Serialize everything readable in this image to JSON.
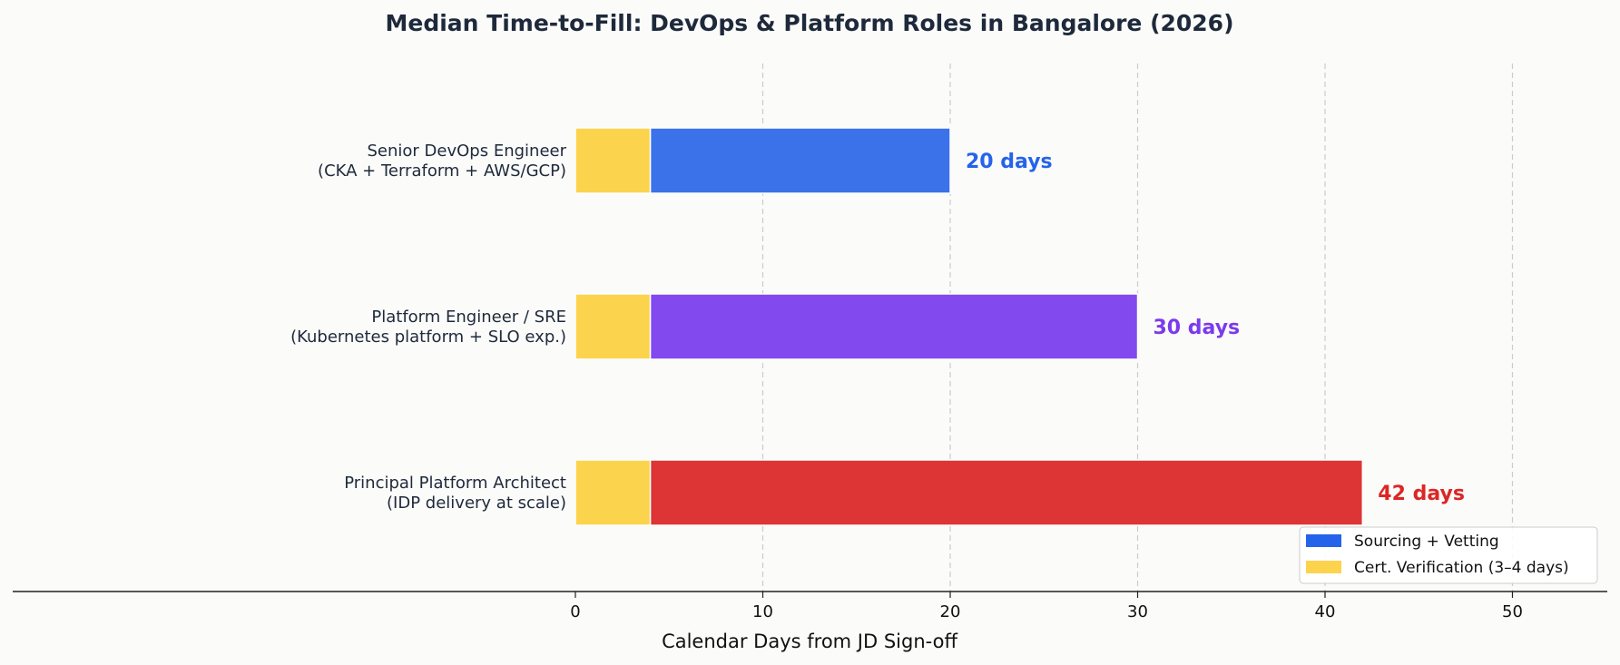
{
  "chart_data": {
    "type": "bar",
    "orientation": "horizontal",
    "stacked": true,
    "title": "Median Time-to-Fill: DevOps & Platform Roles in Bangalore (2026)",
    "xlabel": "Calendar Days from JD Sign-off",
    "ylabel": "",
    "xlim": [
      0,
      55
    ],
    "xticks": [
      0,
      10,
      20,
      30,
      40,
      50
    ],
    "grid": "x dashed",
    "legend_position": "lower-right",
    "categories": [
      [
        "Senior DevOps Engineer",
        "(CKA + Terraform + AWS/GCP)"
      ],
      [
        "Platform Engineer / SRE",
        "(Kubernetes platform + SLO exp.)"
      ],
      [
        "Principal Platform Architect",
        "(IDP delivery at scale)"
      ]
    ],
    "series": [
      {
        "name": "Cert. Verification (3–4 days)",
        "color": "#fcd34d",
        "values": [
          4,
          4,
          4
        ]
      },
      {
        "name": "Sourcing + Vetting",
        "color": "#2563eb",
        "bar_colors": [
          "#3b72ea",
          "#8149ee",
          "#dd3535"
        ],
        "values": [
          16,
          26,
          38
        ]
      }
    ],
    "totals": [
      20,
      30,
      42
    ],
    "total_labels": [
      "20 days",
      "30 days",
      "42 days"
    ],
    "total_label_colors": [
      "#2563eb",
      "#7c3aed",
      "#dc2626"
    ],
    "legend": [
      {
        "label": "Sourcing + Vetting",
        "color": "#2563eb"
      },
      {
        "label": "Cert. Verification (3–4 days)",
        "color": "#fcd34d"
      }
    ]
  }
}
